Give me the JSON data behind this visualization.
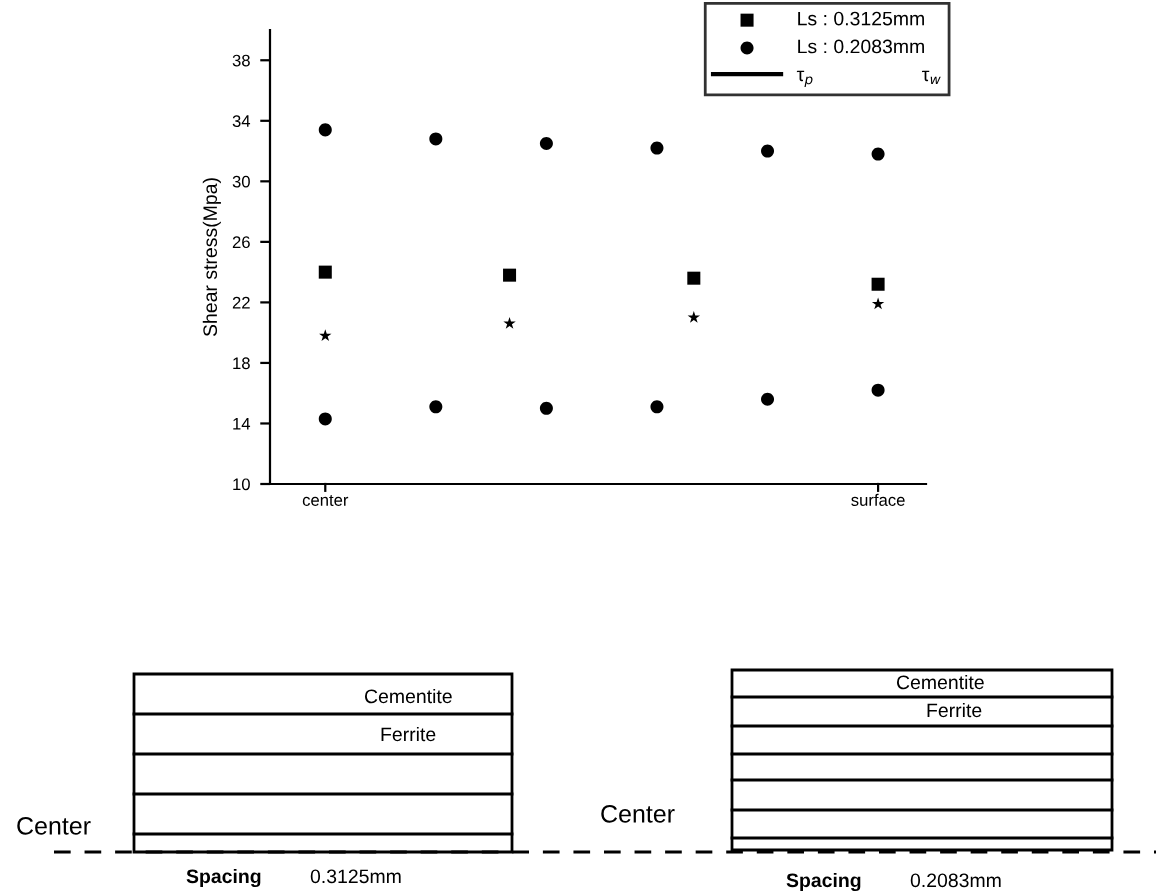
{
  "chart_data": {
    "type": "scatter",
    "ylabel": "Shear stress(Mpa)",
    "categories": [
      "center",
      null,
      null,
      null,
      null,
      null,
      null,
      null,
      null,
      null,
      null,
      null,
      null,
      null,
      null,
      "surface"
    ],
    "ylim": [
      10,
      40
    ],
    "yticks": [
      10,
      14,
      18,
      22,
      26,
      30,
      34,
      38
    ],
    "series": [
      {
        "name": "Ls : 0.3125mm",
        "color": "#000000",
        "marker": "square",
        "values": [
          24.0,
          null,
          null,
          null,
          null,
          23.8,
          null,
          null,
          null,
          null,
          23.6,
          null,
          null,
          null,
          null,
          23.2
        ]
      },
      {
        "name": "Ls : 0.2083mm",
        "color": "#000000",
        "marker": "circle",
        "values": [
          33.4,
          null,
          null,
          32.8,
          null,
          null,
          32.5,
          null,
          null,
          32.2,
          null,
          null,
          32.0,
          null,
          null,
          31.8
        ]
      },
      {
        "color": "#000000",
        "marker": "star",
        "values": [
          19.8,
          null,
          null,
          null,
          null,
          20.6,
          null,
          null,
          null,
          null,
          21.0,
          null,
          null,
          null,
          null,
          21.9
        ]
      },
      {
        "color": "#000000",
        "marker": "circle",
        "values": [
          14.3,
          null,
          null,
          15.1,
          null,
          null,
          15.0,
          null,
          null,
          15.1,
          null,
          null,
          15.6,
          null,
          null,
          16.2
        ]
      }
    ],
    "legend": "top right",
    "annotations": [
      "τ$_{p}$",
      "τ$_{w}$",
      "Cementite",
      "Ferrite",
      "Center",
      "Spacing",
      "0.3125mm",
      "Cementite",
      "Ferrite",
      "Center",
      "Spacing",
      "0.2083mm"
    ]
  }
}
